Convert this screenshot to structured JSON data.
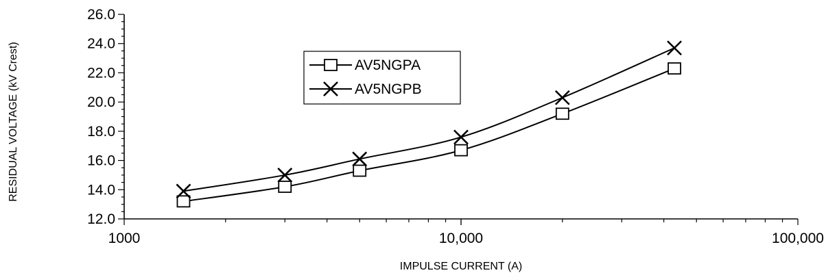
{
  "chart_data": {
    "type": "line",
    "xlabel": "IMPULSE CURRENT (A)",
    "ylabel": "RESIDUAL VOLTAGE (kV Crest)",
    "x_scale": "log",
    "xlim": [
      1000,
      100000
    ],
    "ylim": [
      12.0,
      26.0
    ],
    "x_tick_values": [
      1000,
      10000,
      100000
    ],
    "x_tick_labels": [
      "1000",
      "10,000",
      "100,000"
    ],
    "y_tick_values": [
      12,
      14,
      16,
      18,
      20,
      22,
      24,
      26
    ],
    "y_tick_labels": [
      "12.0",
      "14.0",
      "16.0",
      "18.0",
      "20.0",
      "22.0",
      "24.0",
      "26.0"
    ],
    "grid": false,
    "legend_position": "upper-left-center",
    "series": [
      {
        "name": "AV5NGPA",
        "marker": "square",
        "x": [
          1500,
          3000,
          5000,
          10000,
          20000,
          43000
        ],
        "y": [
          13.2,
          14.2,
          15.3,
          16.7,
          19.2,
          22.3
        ]
      },
      {
        "name": "AV5NGPB",
        "marker": "x",
        "x": [
          1500,
          3000,
          5000,
          10000,
          20000,
          43000
        ],
        "y": [
          13.9,
          15.0,
          16.1,
          17.6,
          20.3,
          23.7
        ]
      }
    ]
  }
}
